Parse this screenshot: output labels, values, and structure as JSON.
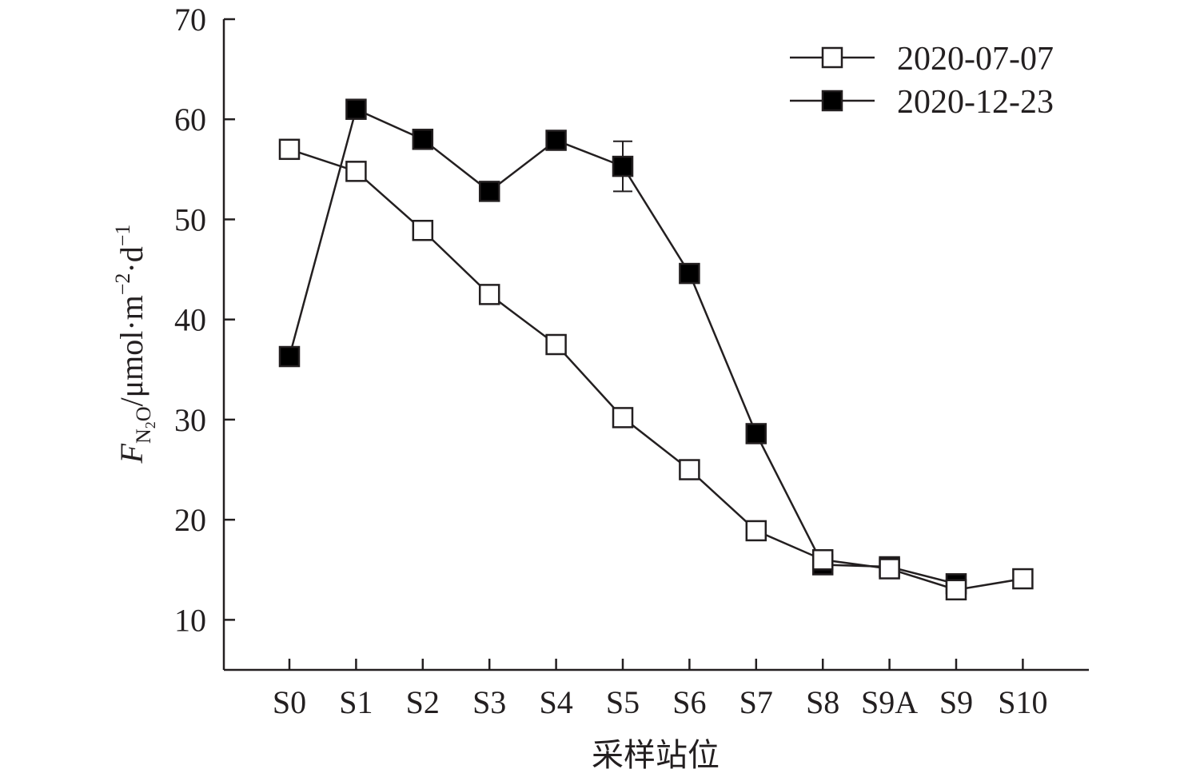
{
  "chart_data": {
    "type": "line",
    "categories": [
      "S0",
      "S1",
      "S2",
      "S3",
      "S4",
      "S5",
      "S6",
      "S7",
      "S8",
      "S9A",
      "S9",
      "S10"
    ],
    "series": [
      {
        "name": "2020-07-07",
        "marker": "open-square",
        "values": [
          57.0,
          54.8,
          48.9,
          42.5,
          37.5,
          30.2,
          25.0,
          18.9,
          16.0,
          15.1,
          13.0,
          14.1
        ]
      },
      {
        "name": "2020-12-23",
        "marker": "filled-square",
        "values": [
          36.3,
          61.0,
          58.0,
          52.8,
          57.9,
          55.3,
          44.6,
          28.6,
          15.5,
          15.3,
          13.6,
          null
        ],
        "error_bars": [
          null,
          null,
          null,
          null,
          null,
          2.5,
          null,
          null,
          null,
          null,
          null,
          null
        ]
      }
    ],
    "ylim": [
      5,
      70
    ],
    "yticks": [
      10,
      20,
      30,
      40,
      50,
      60,
      70
    ],
    "xlabel": "采样站位",
    "ylabel": {
      "var": "F",
      "sub_main": "N",
      "sub_sub": "2",
      "sub_tail": "O",
      "unit": "/μmol·m",
      "exp1": "−2",
      "mid": "·d",
      "exp2": "−1"
    },
    "legend_position": "top-right",
    "grid": false,
    "colors": {
      "line": "#231f20",
      "marker_fill_open": "#ffffff",
      "marker_fill_filled": "#000000"
    }
  }
}
